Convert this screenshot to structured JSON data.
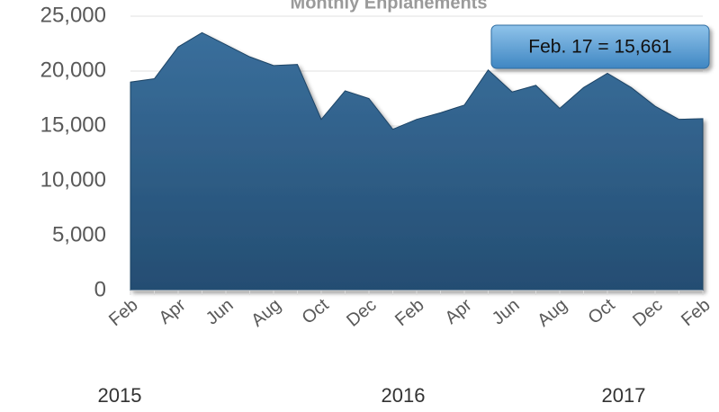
{
  "chart_data": {
    "type": "area",
    "title": "Monthly Enplanements",
    "categories": [
      "Feb",
      null,
      "Apr",
      null,
      "Jun",
      null,
      "Aug",
      null,
      "Oct",
      null,
      "Dec",
      null,
      "Feb",
      null,
      "Apr",
      null,
      "Jun",
      null,
      "Aug",
      null,
      "Oct",
      null,
      "Dec",
      null,
      "Feb"
    ],
    "values": [
      19000,
      19300,
      22200,
      23500,
      22400,
      21300,
      20500,
      20600,
      15600,
      18200,
      17500,
      14700,
      15600,
      16200,
      16900,
      20100,
      18100,
      18700,
      16600,
      18500,
      19800,
      18500,
      16800,
      15600,
      15661
    ],
    "color": "#2e5f8a",
    "ylim": [
      0,
      25000
    ],
    "yticks": [
      0,
      {
        "value": 5000,
        "label": "5,000"
      },
      {
        "value": 10000,
        "label": "10,000"
      },
      {
        "value": 15000,
        "label": "15,000"
      },
      {
        "value": 20000,
        "label": "20,000"
      },
      {
        "value": 25000,
        "label": "25,000"
      }
    ],
    "grid": true,
    "year_labels": [
      "2015",
      "2016",
      "2017"
    ],
    "annotation": "Feb. 17 = 15,661"
  }
}
